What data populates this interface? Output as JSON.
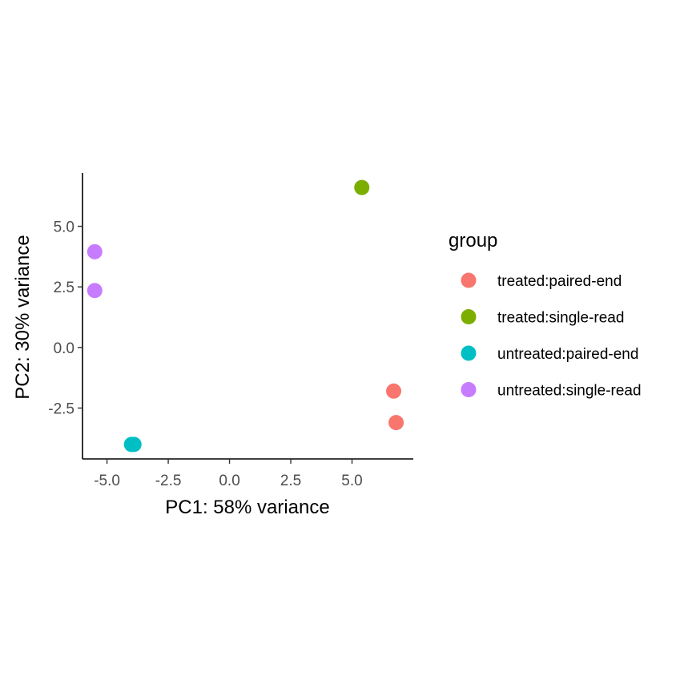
{
  "chart_data": {
    "type": "scatter",
    "title": "",
    "xlabel": "PC1: 58% variance",
    "ylabel": "PC2: 30% variance",
    "xlim": [
      -6.0,
      7.5
    ],
    "ylim": [
      -4.6,
      7.2
    ],
    "x_ticks": [
      -5.0,
      -2.5,
      0.0,
      2.5,
      5.0
    ],
    "x_tick_labels": [
      "-5.0",
      "-2.5",
      "0.0",
      "2.5",
      "5.0"
    ],
    "y_ticks": [
      -2.5,
      0.0,
      2.5,
      5.0
    ],
    "y_tick_labels": [
      "-2.5",
      "0.0",
      "2.5",
      "5.0"
    ],
    "grid": false,
    "legend": {
      "title": "group",
      "placement": "right"
    },
    "series": [
      {
        "name": "treated:paired-end",
        "color": "#F8766D",
        "points": [
          {
            "x": 6.7,
            "y": -1.8
          },
          {
            "x": 6.8,
            "y": -3.1
          }
        ]
      },
      {
        "name": "treated:single-read",
        "color": "#7CAE00",
        "points": [
          {
            "x": 5.4,
            "y": 6.6
          }
        ]
      },
      {
        "name": "untreated:paired-end",
        "color": "#00BFC4",
        "points": [
          {
            "x": -4.0,
            "y": -4.0
          },
          {
            "x": -3.9,
            "y": -4.0
          }
        ]
      },
      {
        "name": "untreated:single-read",
        "color": "#C77CFF",
        "points": [
          {
            "x": -5.5,
            "y": 3.95
          },
          {
            "x": -5.5,
            "y": 2.35
          }
        ]
      }
    ]
  }
}
